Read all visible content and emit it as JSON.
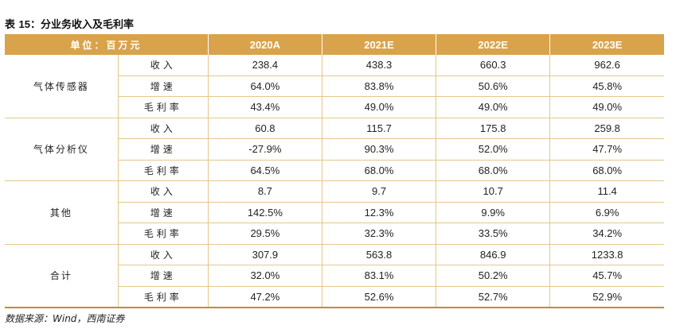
{
  "title": {
    "prefix": "表",
    "number": "15：",
    "text": "分业务收入及毛利率"
  },
  "header": {
    "unit": "单位：百万元",
    "years": [
      "2020A",
      "2021E",
      "2022E",
      "2023E"
    ]
  },
  "groups": [
    {
      "name": "气体传感器",
      "rows": [
        {
          "metric": "收入",
          "values": [
            "238.4",
            "438.3",
            "660.3",
            "962.6"
          ]
        },
        {
          "metric": "增速",
          "values": [
            "64.0%",
            "83.8%",
            "50.6%",
            "45.8%"
          ]
        },
        {
          "metric": "毛利率",
          "values": [
            "43.4%",
            "49.0%",
            "49.0%",
            "49.0%"
          ]
        }
      ]
    },
    {
      "name": "气体分析仪",
      "rows": [
        {
          "metric": "收入",
          "values": [
            "60.8",
            "115.7",
            "175.8",
            "259.8"
          ]
        },
        {
          "metric": "增速",
          "values": [
            "-27.9%",
            "90.3%",
            "52.0%",
            "47.7%"
          ]
        },
        {
          "metric": "毛利率",
          "values": [
            "64.5%",
            "68.0%",
            "68.0%",
            "68.0%"
          ]
        }
      ]
    },
    {
      "name": "其他",
      "rows": [
        {
          "metric": "收入",
          "values": [
            "8.7",
            "9.7",
            "10.7",
            "11.4"
          ]
        },
        {
          "metric": "增速",
          "values": [
            "142.5%",
            "12.3%",
            "9.9%",
            "6.9%"
          ]
        },
        {
          "metric": "毛利率",
          "values": [
            "29.5%",
            "32.3%",
            "33.5%",
            "34.2%"
          ]
        }
      ]
    },
    {
      "name": "合计",
      "rows": [
        {
          "metric": "收入",
          "values": [
            "307.9",
            "563.8",
            "846.9",
            "1233.8"
          ]
        },
        {
          "metric": "增速",
          "values": [
            "32.0%",
            "83.1%",
            "50.2%",
            "45.7%"
          ]
        },
        {
          "metric": "毛利率",
          "values": [
            "47.2%",
            "52.6%",
            "52.7%",
            "52.9%"
          ]
        }
      ]
    }
  ],
  "source": "数据来源：Wind，西南证券",
  "colors": {
    "header_bg": "#d8a34a",
    "border": "#e3c78d",
    "bottom_rule": "#c9892f"
  }
}
